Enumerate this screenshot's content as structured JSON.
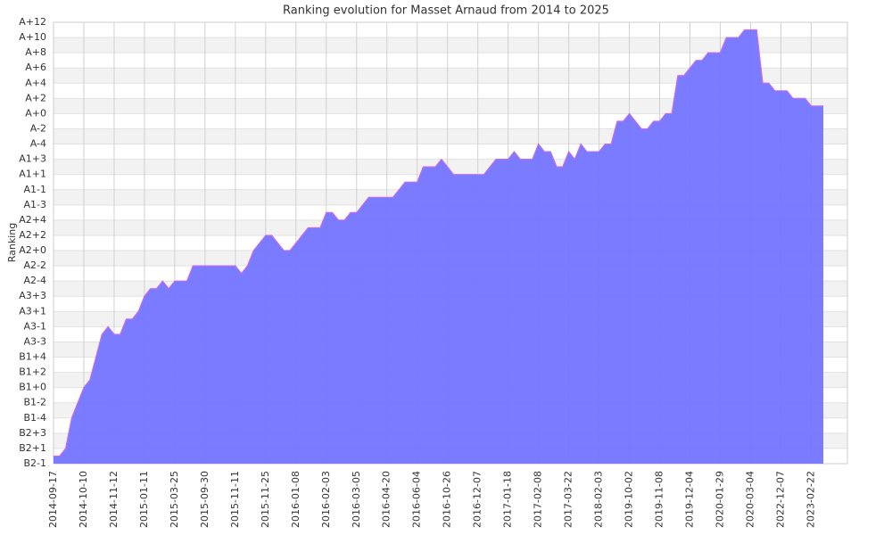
{
  "chart_data": {
    "type": "area",
    "title": "Ranking evolution for Masset Arnaud from 2014 to 2025",
    "y_label": "Ranking",
    "categories": [
      "2014-09-17",
      null,
      null,
      null,
      null,
      "2014-10-10",
      null,
      null,
      null,
      null,
      "2014-11-12",
      null,
      null,
      null,
      null,
      "2015-01-11",
      null,
      null,
      null,
      null,
      "2015-03-25",
      null,
      null,
      null,
      null,
      "2015-09-30",
      null,
      null,
      null,
      null,
      "2015-11-11",
      null,
      null,
      null,
      null,
      "2015-11-25",
      null,
      null,
      null,
      null,
      "2016-01-08",
      null,
      null,
      null,
      null,
      "2016-02-03",
      null,
      null,
      null,
      null,
      "2016-03-05",
      null,
      null,
      null,
      null,
      "2016-04-20",
      null,
      null,
      null,
      null,
      "2016-06-04",
      null,
      null,
      null,
      null,
      "2016-10-26",
      null,
      null,
      null,
      null,
      "2016-12-07",
      null,
      null,
      null,
      null,
      "2017-01-18",
      null,
      null,
      null,
      null,
      "2017-02-08",
      null,
      null,
      null,
      null,
      "2017-03-22",
      null,
      null,
      null,
      null,
      "2018-02-03",
      null,
      null,
      null,
      null,
      "2019-10-02",
      null,
      null,
      null,
      null,
      "2019-11-08",
      null,
      null,
      null,
      null,
      "2019-12-04",
      null,
      null,
      null,
      null,
      "2020-01-29",
      null,
      null,
      null,
      null,
      "2020-03-04",
      null,
      null,
      null,
      null,
      "2022-12-07",
      null,
      null,
      null,
      null,
      "2023-02-22",
      null,
      null
    ],
    "series": [
      {
        "name": "Ranking",
        "color": "#7474ff",
        "line_color": "#c46cf0",
        "values": [
          0.5,
          0.5,
          1,
          3,
          4,
          5,
          5.5,
          7,
          8.5,
          9,
          8.5,
          8.5,
          9.5,
          9.5,
          10,
          11,
          11.5,
          11.5,
          12,
          11.5,
          12,
          12,
          12,
          13,
          13,
          13,
          13,
          13,
          13,
          13,
          13,
          12.5,
          13,
          14,
          14.5,
          15,
          15,
          14.5,
          14,
          14,
          14.5,
          15,
          15.5,
          15.5,
          15.5,
          16.5,
          16.5,
          16,
          16,
          16.5,
          16.5,
          17,
          17.5,
          17.5,
          17.5,
          17.5,
          17.5,
          18,
          18.5,
          18.5,
          18.5,
          19.5,
          19.5,
          19.5,
          20,
          19.5,
          19,
          19,
          19,
          19,
          19,
          19,
          19.5,
          20,
          20,
          20,
          20.5,
          20,
          20,
          20,
          21,
          20.5,
          20.5,
          19.5,
          19.5,
          20.5,
          20,
          21,
          20.5,
          20.5,
          20.5,
          21,
          21,
          22.5,
          22.5,
          23,
          22.5,
          22,
          22,
          22.5,
          22.5,
          23,
          23,
          25.5,
          25.5,
          26,
          26.5,
          26.5,
          27,
          27,
          27,
          28,
          28,
          28,
          28.5,
          28.5,
          28.5,
          25,
          25,
          24.5,
          24.5,
          24.5,
          24,
          24,
          24,
          23.5,
          23.5,
          23.5
        ]
      }
    ],
    "ylim": [
      0,
      29
    ],
    "yticks": [
      {
        "value": 0,
        "label": "B2-1"
      },
      {
        "value": 1,
        "label": "B2+1"
      },
      {
        "value": 2,
        "label": "B2+3"
      },
      {
        "value": 3,
        "label": "B1-4"
      },
      {
        "value": 4,
        "label": "B1-2"
      },
      {
        "value": 5,
        "label": "B1+0"
      },
      {
        "value": 6,
        "label": "B1+2"
      },
      {
        "value": 7,
        "label": "B1+4"
      },
      {
        "value": 8,
        "label": "A3-3"
      },
      {
        "value": 9,
        "label": "A3-1"
      },
      {
        "value": 10,
        "label": "A3+1"
      },
      {
        "value": 11,
        "label": "A3+3"
      },
      {
        "value": 12,
        "label": "A2-4"
      },
      {
        "value": 13,
        "label": "A2-2"
      },
      {
        "value": 14,
        "label": "A2+0"
      },
      {
        "value": 15,
        "label": "A2+2"
      },
      {
        "value": 16,
        "label": "A2+4"
      },
      {
        "value": 17,
        "label": "A1-3"
      },
      {
        "value": 18,
        "label": "A1-1"
      },
      {
        "value": 19,
        "label": "A1+1"
      },
      {
        "value": 20,
        "label": "A1+3"
      },
      {
        "value": 21,
        "label": "A-4"
      },
      {
        "value": 22,
        "label": "A-2"
      },
      {
        "value": 23,
        "label": "A+0"
      },
      {
        "value": 24,
        "label": "A+2"
      },
      {
        "value": 25,
        "label": "A+4"
      },
      {
        "value": 26,
        "label": "A+6"
      },
      {
        "value": 27,
        "label": "A+8"
      },
      {
        "value": 28,
        "label": "A+10"
      },
      {
        "value": 29,
        "label": "A+12"
      }
    ],
    "grid": true
  }
}
